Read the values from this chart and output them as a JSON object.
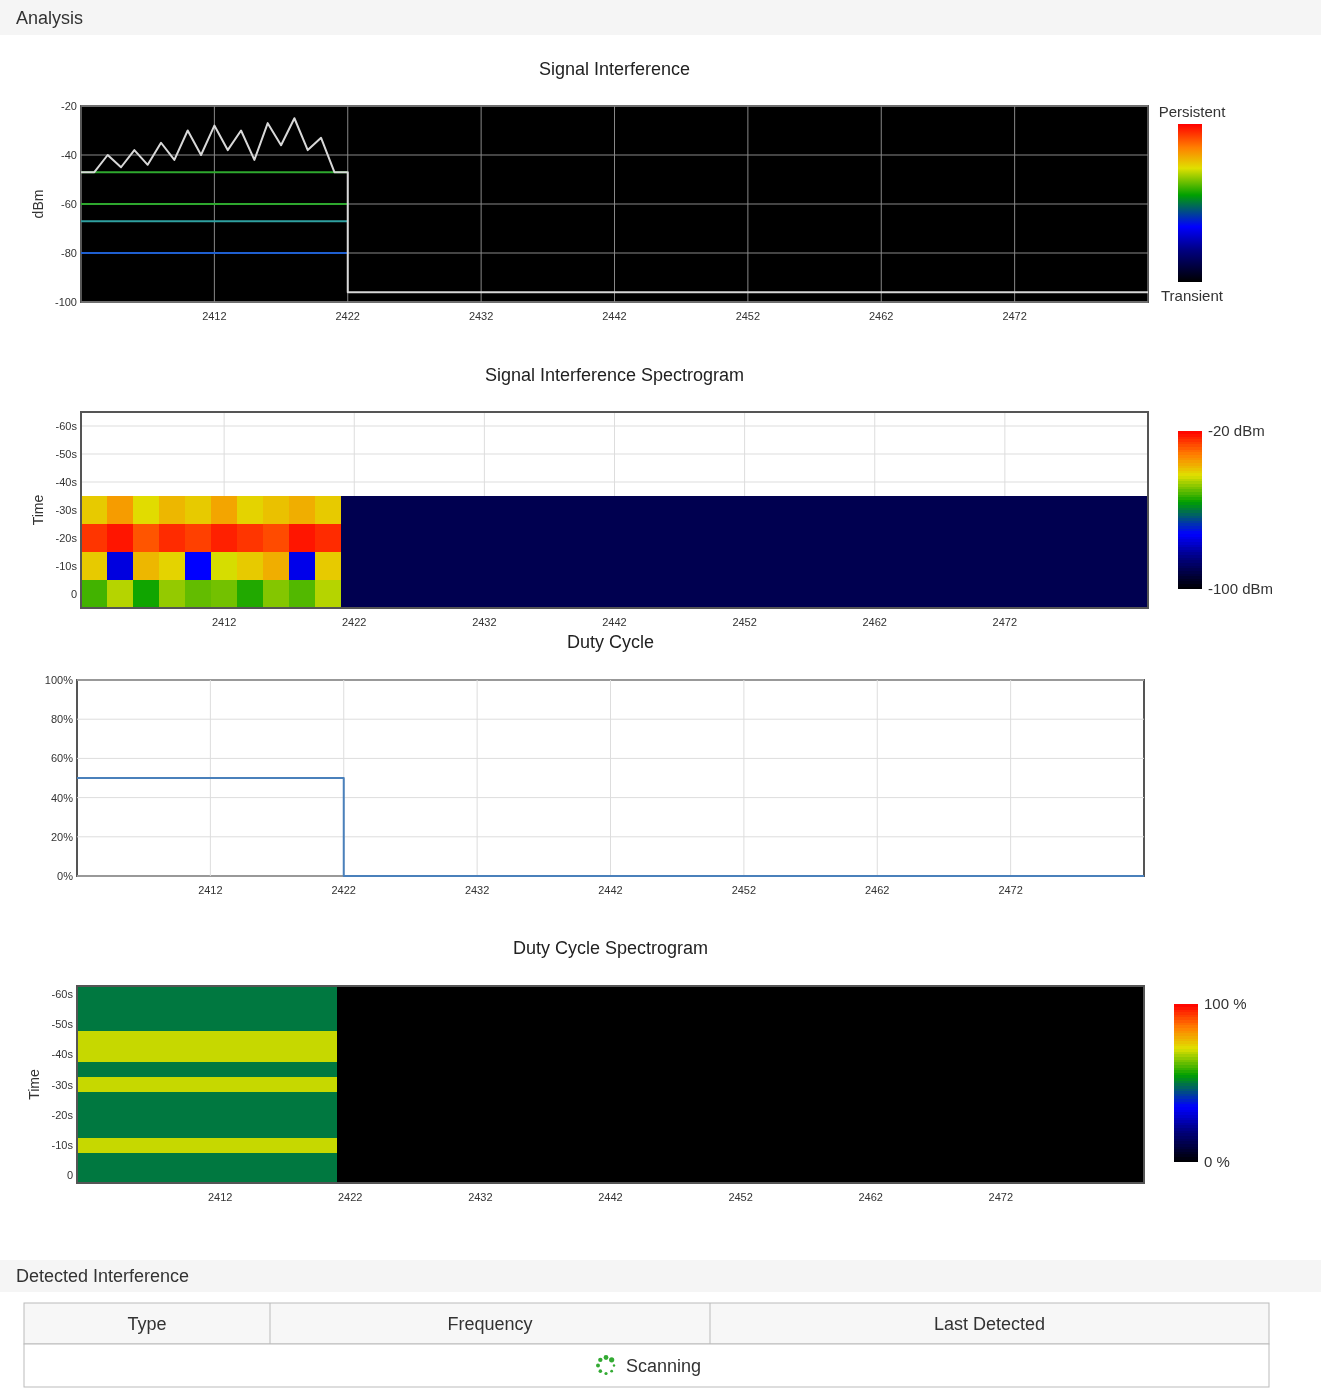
{
  "chart_data": [
    {
      "type": "other",
      "title": "Analysis"
    },
    {
      "type": "line",
      "title": "Signal Interference",
      "ylabel": "dBm",
      "xlim": [
        2402,
        2482
      ],
      "xticks": [
        2412,
        2422,
        2432,
        2442,
        2452,
        2462,
        2472
      ],
      "ylim": [
        -100,
        -20
      ],
      "yticks": [
        -100,
        -80,
        -60,
        -40,
        -20
      ],
      "grid": true,
      "annotations": [
        "Persistent",
        "Transient"
      ],
      "series": [
        {
          "color": "#1f5fd0",
          "x": [
            2402,
            2422
          ],
          "values": [
            -80,
            -80
          ]
        },
        {
          "color": "#2fa0a0",
          "x": [
            2402,
            2422
          ],
          "values": [
            -67,
            -67
          ]
        },
        {
          "color": "#2ea82e",
          "x": [
            2402,
            2422
          ],
          "values": [
            -60,
            -60
          ]
        },
        {
          "color": "#2ea82e",
          "x": [
            2402,
            2422
          ],
          "values": [
            -47,
            -47
          ]
        },
        {
          "color": "#d8d8d8",
          "x": [
            2402,
            2403,
            2404,
            2405,
            2406,
            2407,
            2408,
            2409,
            2410,
            2411,
            2412,
            2413,
            2414,
            2415,
            2416,
            2417,
            2418,
            2419,
            2420,
            2421,
            2422,
            2422,
            2482
          ],
          "values": [
            -47,
            -47,
            -40,
            -45,
            -38,
            -44,
            -35,
            -42,
            -30,
            -40,
            -28,
            -38,
            -30,
            -42,
            -27,
            -36,
            -25,
            -38,
            -33,
            -47,
            -47,
            -96,
            -96
          ]
        }
      ]
    },
    {
      "type": "heatmap",
      "title": "Signal Interference Spectrogram",
      "ylabel": "Time",
      "grid": true,
      "clim": [
        -100,
        -20
      ],
      "cticks": [
        {
          "value": -20,
          "label": "-20 dBm"
        },
        {
          "value": -100,
          "label": "-100 dBm"
        }
      ],
      "categories": [
        null,
        null,
        null,
        null,
        null,
        "2412",
        null,
        null,
        null,
        null,
        "2422",
        null,
        null,
        null,
        null,
        "2432",
        null,
        null,
        null,
        null,
        "2442",
        null,
        null,
        null,
        null,
        "2452",
        null,
        null,
        null,
        null,
        "2462",
        null,
        null,
        null,
        null,
        "2472",
        null,
        null,
        null,
        null,
        null
      ],
      "y_categories": [
        "-60s",
        "-50s",
        "-40s",
        "-30s",
        "-20s",
        "-10s",
        "0"
      ],
      "cells": [
        [
          null,
          null,
          null,
          null,
          null,
          null,
          null,
          null,
          null,
          null,
          null,
          null,
          null,
          null,
          null,
          null,
          null,
          null,
          null,
          null,
          null,
          null,
          null,
          null,
          null,
          null,
          null,
          null,
          null,
          null,
          null,
          null,
          null,
          null,
          null,
          null,
          null,
          null,
          null,
          null,
          null
        ],
        [
          null,
          null,
          null,
          null,
          null,
          null,
          null,
          null,
          null,
          null,
          null,
          null,
          null,
          null,
          null,
          null,
          null,
          null,
          null,
          null,
          null,
          null,
          null,
          null,
          null,
          null,
          null,
          null,
          null,
          null,
          null,
          null,
          null,
          null,
          null,
          null,
          null,
          null,
          null,
          null,
          null
        ],
        [
          null,
          null,
          null,
          null,
          null,
          null,
          null,
          null,
          null,
          null,
          null,
          null,
          null,
          null,
          null,
          null,
          null,
          null,
          null,
          null,
          null,
          null,
          null,
          null,
          null,
          null,
          null,
          null,
          null,
          null,
          null,
          null,
          null,
          null,
          null,
          null,
          null,
          null,
          null,
          null,
          null
        ],
        [
          -40,
          -35,
          -42,
          -38,
          -40,
          -36,
          -41,
          -39,
          -37,
          -40,
          -90,
          -90,
          -90,
          -90,
          -90,
          -90,
          -90,
          -90,
          -90,
          -90,
          -90,
          -90,
          -90,
          -90,
          -90,
          -90,
          -90,
          -90,
          -90,
          -90,
          -90,
          -90,
          -90,
          -90,
          -90,
          -90,
          -90,
          -90,
          -90,
          -90,
          -90
        ],
        [
          -25,
          -22,
          -28,
          -24,
          -26,
          -23,
          -25,
          -27,
          -22,
          -24,
          -90,
          -90,
          -90,
          -90,
          -90,
          -90,
          -90,
          -90,
          -90,
          -90,
          -90,
          -90,
          -90,
          -90,
          -90,
          -90,
          -90,
          -90,
          -90,
          -90,
          -90,
          -90,
          -90,
          -90,
          -90,
          -90,
          -90,
          -90,
          -90,
          -90,
          -90
        ],
        [
          -40,
          -75,
          -38,
          -41,
          -72,
          -43,
          -40,
          -37,
          -74,
          -40,
          -90,
          -90,
          -90,
          -90,
          -90,
          -90,
          -90,
          -90,
          -90,
          -90,
          -90,
          -90,
          -90,
          -90,
          -90,
          -90,
          -90,
          -90,
          -90,
          -90,
          -90,
          -90,
          -90,
          -90,
          -90,
          -90,
          -90,
          -90,
          -90,
          -90,
          -90
        ],
        [
          -52,
          -45,
          -55,
          -47,
          -50,
          -49,
          -54,
          -48,
          -51,
          -45,
          -90,
          -90,
          -90,
          -90,
          -90,
          -90,
          -90,
          -90,
          -90,
          -90,
          -90,
          -90,
          -90,
          -90,
          -90,
          -90,
          -90,
          -90,
          -90,
          -90,
          -90,
          -90,
          -90,
          -90,
          -90,
          -90,
          -90,
          -90,
          -90,
          -90,
          -90
        ]
      ]
    },
    {
      "type": "step",
      "title": "Duty Cycle",
      "xlim": [
        2402,
        2482
      ],
      "xticks": [
        2412,
        2422,
        2432,
        2442,
        2452,
        2462,
        2472
      ],
      "ylim": [
        0,
        100
      ],
      "yticks": [
        {
          "value": 0,
          "label": "0%"
        },
        {
          "value": 20,
          "label": "20%"
        },
        {
          "value": 40,
          "label": "40%"
        },
        {
          "value": 60,
          "label": "60%"
        },
        {
          "value": 80,
          "label": "80%"
        },
        {
          "value": 100,
          "label": "100%"
        }
      ],
      "grid": true,
      "series": [
        {
          "color": "#4a80bb",
          "x": [
            2402,
            2412,
            2422,
            2432,
            2442,
            2452,
            2462,
            2472,
            2482
          ],
          "values": [
            50,
            50,
            0,
            0,
            0,
            0,
            0,
            0,
            0
          ]
        }
      ]
    },
    {
      "type": "heatmap",
      "title": "Duty Cycle Spectrogram",
      "ylabel": "Time",
      "clim": [
        0,
        100
      ],
      "cticks": [
        {
          "value": 100,
          "label": "100 %"
        },
        {
          "value": 0,
          "label": "0 %"
        }
      ],
      "categories": [
        null,
        null,
        null,
        null,
        null,
        "2412",
        null,
        null,
        null,
        null,
        "2422",
        null,
        null,
        null,
        null,
        "2432",
        null,
        null,
        null,
        null,
        "2442",
        null,
        null,
        null,
        null,
        "2452",
        null,
        null,
        null,
        null,
        "2462",
        null,
        null,
        null,
        null,
        "2472",
        null,
        null,
        null,
        null,
        null
      ],
      "y_categories": [
        "-60s",
        null,
        "-50s",
        null,
        "-40s",
        null,
        "-30s",
        null,
        "-20s",
        null,
        "-10s",
        null,
        "0"
      ],
      "cells": [
        [
          50,
          50,
          50,
          50,
          50,
          50,
          50,
          50,
          50,
          50,
          0,
          0,
          0,
          0,
          0,
          0,
          0,
          0,
          0,
          0,
          0,
          0,
          0,
          0,
          0,
          0,
          0,
          0,
          0,
          0,
          0,
          0,
          0,
          0,
          0,
          0,
          0,
          0,
          0,
          0,
          0
        ],
        [
          50,
          50,
          50,
          50,
          50,
          50,
          50,
          50,
          50,
          50,
          0,
          0,
          0,
          0,
          0,
          0,
          0,
          0,
          0,
          0,
          0,
          0,
          0,
          0,
          0,
          0,
          0,
          0,
          0,
          0,
          0,
          0,
          0,
          0,
          0,
          0,
          0,
          0,
          0,
          0,
          0
        ],
        [
          50,
          50,
          50,
          50,
          50,
          50,
          50,
          50,
          50,
          50,
          0,
          0,
          0,
          0,
          0,
          0,
          0,
          0,
          0,
          0,
          0,
          0,
          0,
          0,
          0,
          0,
          0,
          0,
          0,
          0,
          0,
          0,
          0,
          0,
          0,
          0,
          0,
          0,
          0,
          0,
          0
        ],
        [
          70,
          70,
          70,
          70,
          70,
          70,
          70,
          70,
          70,
          70,
          0,
          0,
          0,
          0,
          0,
          0,
          0,
          0,
          0,
          0,
          0,
          0,
          0,
          0,
          0,
          0,
          0,
          0,
          0,
          0,
          0,
          0,
          0,
          0,
          0,
          0,
          0,
          0,
          0,
          0,
          0
        ],
        [
          70,
          70,
          70,
          70,
          70,
          70,
          70,
          70,
          70,
          70,
          0,
          0,
          0,
          0,
          0,
          0,
          0,
          0,
          0,
          0,
          0,
          0,
          0,
          0,
          0,
          0,
          0,
          0,
          0,
          0,
          0,
          0,
          0,
          0,
          0,
          0,
          0,
          0,
          0,
          0,
          0
        ],
        [
          50,
          50,
          50,
          50,
          50,
          50,
          50,
          50,
          50,
          50,
          0,
          0,
          0,
          0,
          0,
          0,
          0,
          0,
          0,
          0,
          0,
          0,
          0,
          0,
          0,
          0,
          0,
          0,
          0,
          0,
          0,
          0,
          0,
          0,
          0,
          0,
          0,
          0,
          0,
          0,
          0
        ],
        [
          70,
          70,
          70,
          70,
          70,
          70,
          70,
          70,
          70,
          70,
          0,
          0,
          0,
          0,
          0,
          0,
          0,
          0,
          0,
          0,
          0,
          0,
          0,
          0,
          0,
          0,
          0,
          0,
          0,
          0,
          0,
          0,
          0,
          0,
          0,
          0,
          0,
          0,
          0,
          0,
          0
        ],
        [
          50,
          50,
          50,
          50,
          50,
          50,
          50,
          50,
          50,
          50,
          0,
          0,
          0,
          0,
          0,
          0,
          0,
          0,
          0,
          0,
          0,
          0,
          0,
          0,
          0,
          0,
          0,
          0,
          0,
          0,
          0,
          0,
          0,
          0,
          0,
          0,
          0,
          0,
          0,
          0,
          0
        ],
        [
          50,
          50,
          50,
          50,
          50,
          50,
          50,
          50,
          50,
          50,
          0,
          0,
          0,
          0,
          0,
          0,
          0,
          0,
          0,
          0,
          0,
          0,
          0,
          0,
          0,
          0,
          0,
          0,
          0,
          0,
          0,
          0,
          0,
          0,
          0,
          0,
          0,
          0,
          0,
          0,
          0
        ],
        [
          50,
          50,
          50,
          50,
          50,
          50,
          50,
          50,
          50,
          50,
          0,
          0,
          0,
          0,
          0,
          0,
          0,
          0,
          0,
          0,
          0,
          0,
          0,
          0,
          0,
          0,
          0,
          0,
          0,
          0,
          0,
          0,
          0,
          0,
          0,
          0,
          0,
          0,
          0,
          0,
          0
        ],
        [
          70,
          70,
          70,
          70,
          70,
          70,
          70,
          70,
          70,
          70,
          0,
          0,
          0,
          0,
          0,
          0,
          0,
          0,
          0,
          0,
          0,
          0,
          0,
          0,
          0,
          0,
          0,
          0,
          0,
          0,
          0,
          0,
          0,
          0,
          0,
          0,
          0,
          0,
          0,
          0,
          0
        ],
        [
          50,
          50,
          50,
          50,
          50,
          50,
          50,
          50,
          50,
          50,
          0,
          0,
          0,
          0,
          0,
          0,
          0,
          0,
          0,
          0,
          0,
          0,
          0,
          0,
          0,
          0,
          0,
          0,
          0,
          0,
          0,
          0,
          0,
          0,
          0,
          0,
          0,
          0,
          0,
          0,
          0
        ],
        [
          50,
          50,
          50,
          50,
          50,
          50,
          50,
          50,
          50,
          50,
          0,
          0,
          0,
          0,
          0,
          0,
          0,
          0,
          0,
          0,
          0,
          0,
          0,
          0,
          0,
          0,
          0,
          0,
          0,
          0,
          0,
          0,
          0,
          0,
          0,
          0,
          0,
          0,
          0,
          0,
          0
        ]
      ]
    },
    {
      "type": "other",
      "title": "Detected Interference",
      "annotations": [
        "Type",
        "Frequency",
        "Last Detected",
        "Scanning"
      ]
    }
  ]
}
